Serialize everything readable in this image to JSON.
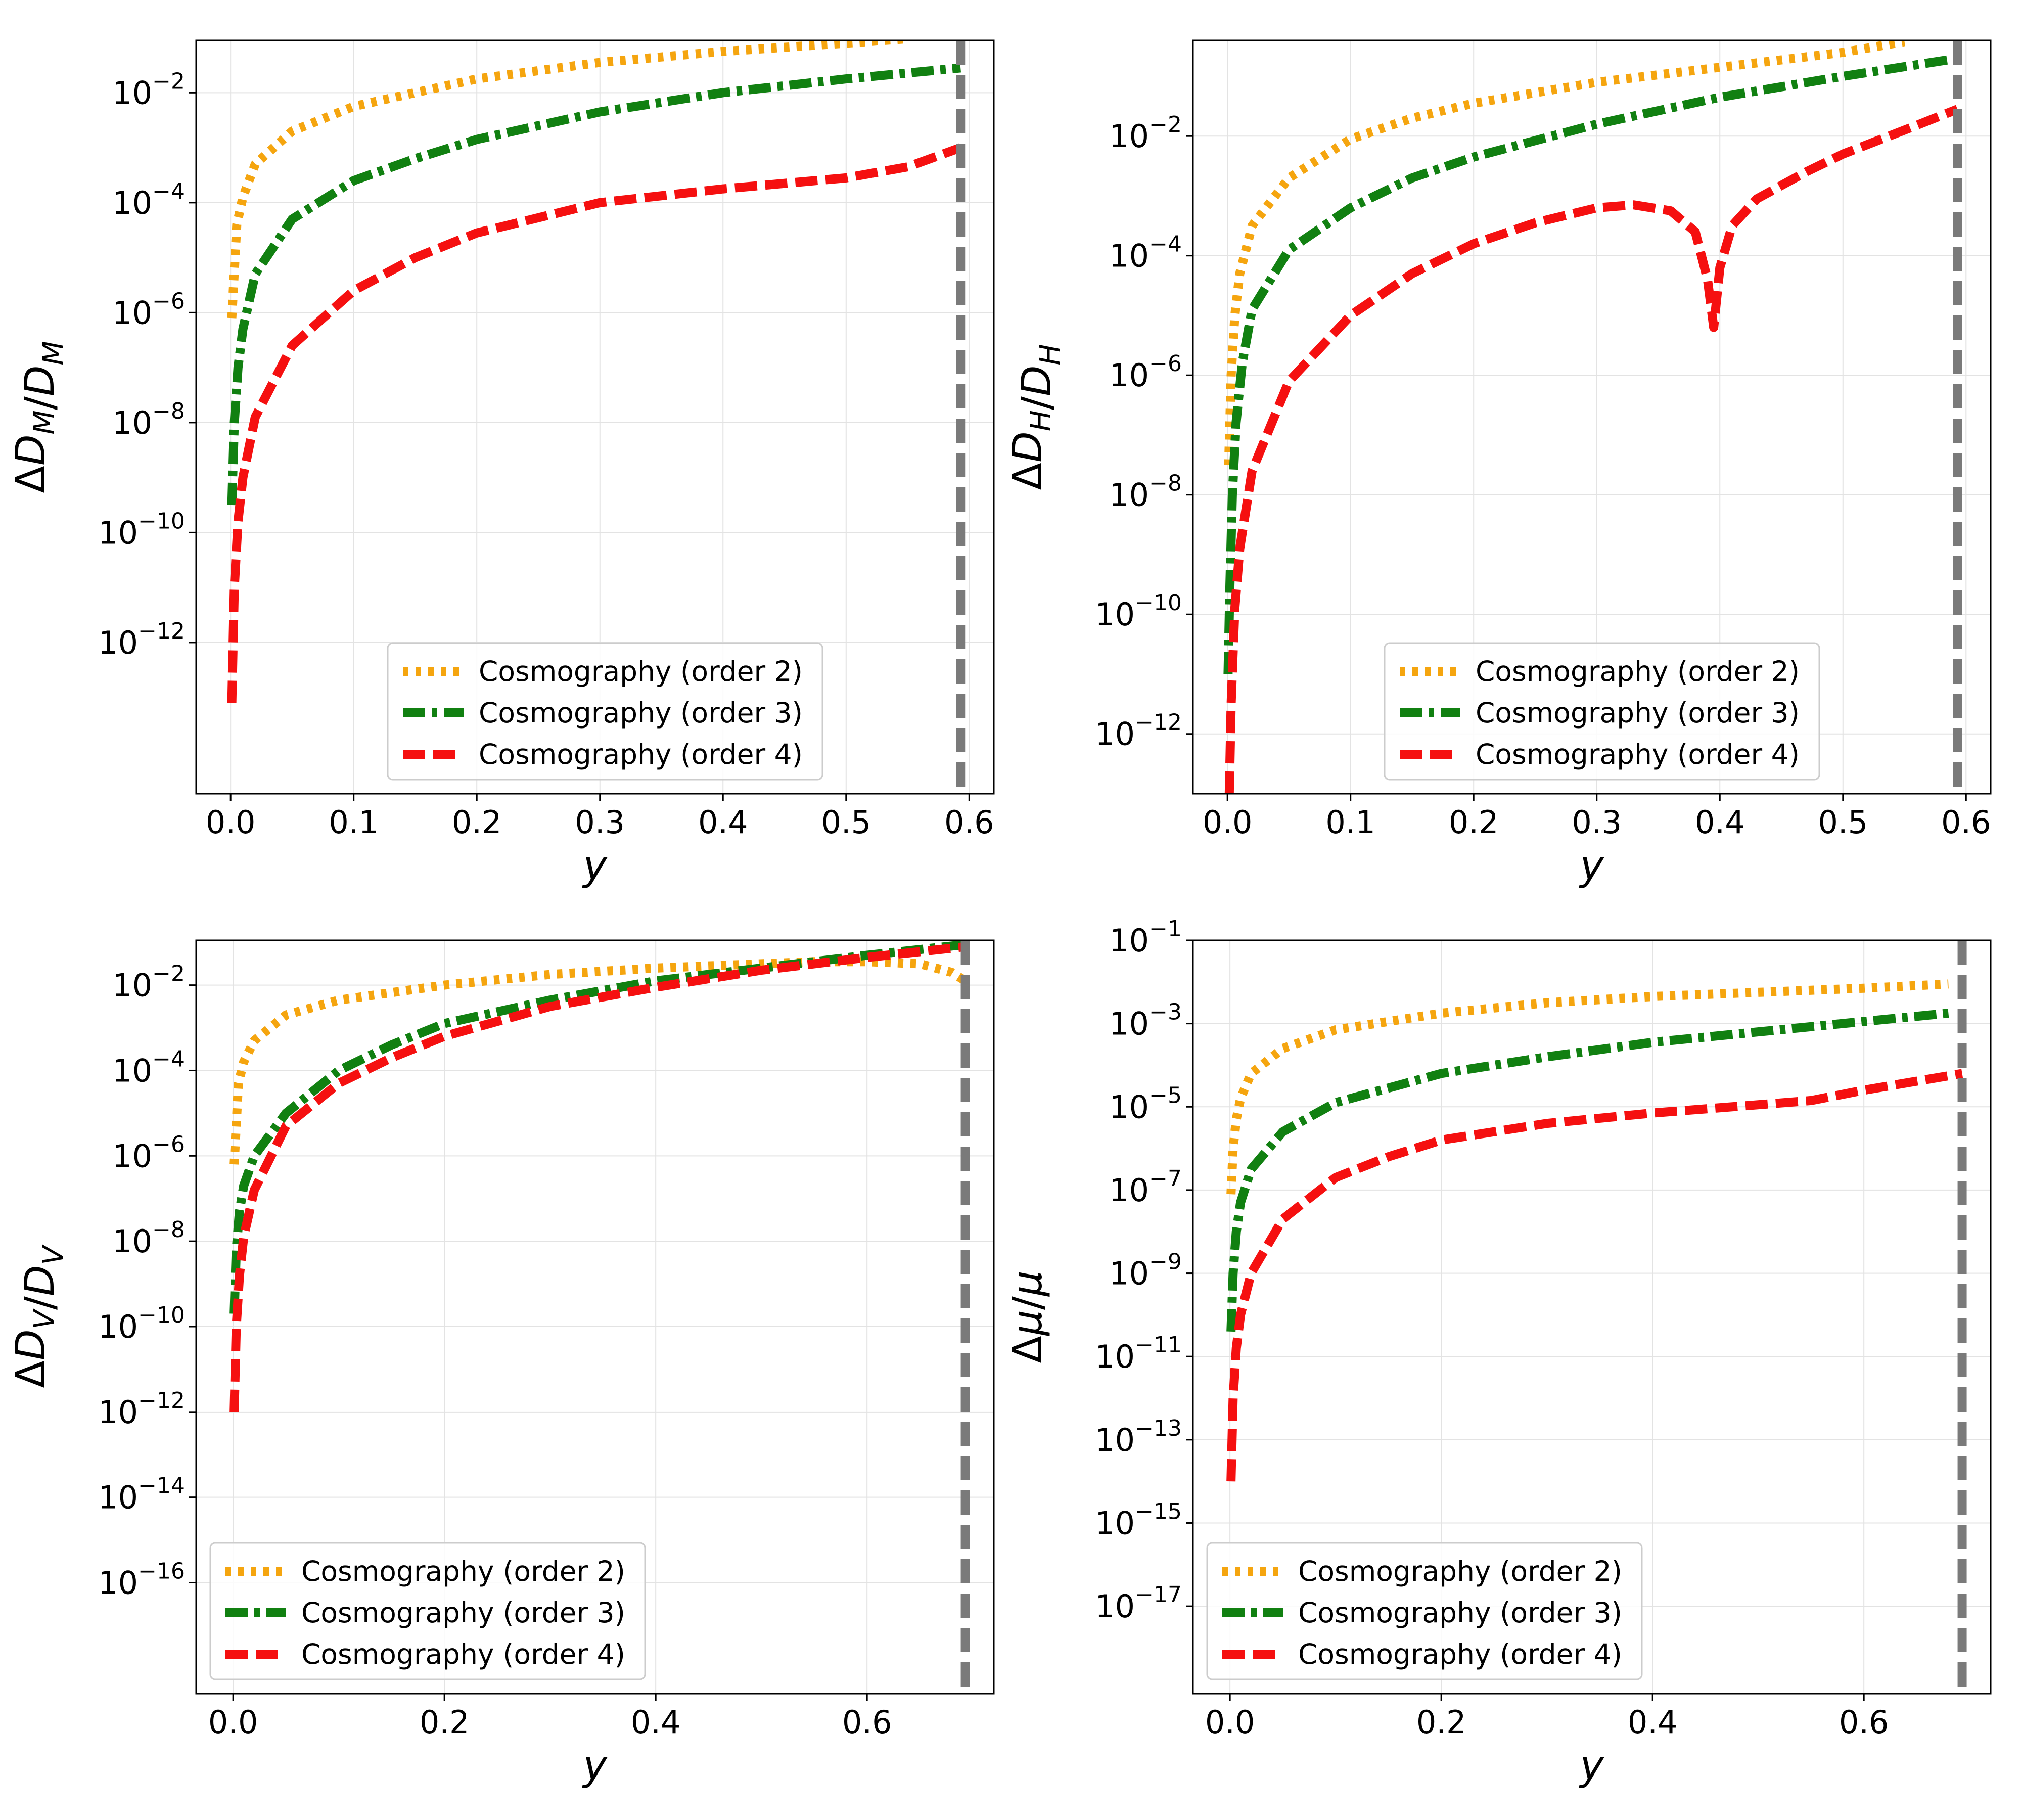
{
  "figure": {
    "legend_labels": [
      "Cosmography (order 2)",
      "Cosmography (order 3)",
      "Cosmography (order 4)"
    ],
    "colors": {
      "order2": "#f5a50f",
      "order3": "#118011",
      "order4": "#f51010",
      "cutoff": "#7a7a7a"
    }
  },
  "chart_data": [
    {
      "id": "dm",
      "type": "line",
      "yscale": "log",
      "xlabel": "y",
      "ylabel": "ΔD_M/D_M",
      "xlim": [
        -0.028,
        0.62
      ],
      "ylim_log10": [
        -14.75,
        -1.05
      ],
      "xticks": [
        0.0,
        0.1,
        0.2,
        0.3,
        0.4,
        0.5,
        0.6
      ],
      "xtick_labels": [
        "0.0",
        "0.1",
        "0.2",
        "0.3",
        "0.4",
        "0.5",
        "0.6"
      ],
      "yticks_log10": [
        -12,
        -10,
        -8,
        -6,
        -4,
        -2
      ],
      "cutoff_x": 0.593,
      "legend_loc": "lower center",
      "series": [
        {
          "name": "Cosmography (order 2)",
          "style": "dotted",
          "log10_points": [
            [
              0.001,
              -6.1
            ],
            [
              0.005,
              -4.4
            ],
            [
              0.01,
              -3.9
            ],
            [
              0.02,
              -3.3
            ],
            [
              0.05,
              -2.7
            ],
            [
              0.1,
              -2.25
            ],
            [
              0.15,
              -2.0
            ],
            [
              0.2,
              -1.75
            ],
            [
              0.3,
              -1.45
            ],
            [
              0.4,
              -1.25
            ],
            [
              0.5,
              -1.1
            ],
            [
              0.55,
              -1.02
            ]
          ]
        },
        {
          "name": "Cosmography (order 3)",
          "style": "dashdot",
          "log10_points": [
            [
              0.001,
              -9.5
            ],
            [
              0.003,
              -8.0
            ],
            [
              0.006,
              -7.0
            ],
            [
              0.01,
              -6.3
            ],
            [
              0.02,
              -5.3
            ],
            [
              0.05,
              -4.3
            ],
            [
              0.1,
              -3.6
            ],
            [
              0.15,
              -3.2
            ],
            [
              0.2,
              -2.85
            ],
            [
              0.3,
              -2.35
            ],
            [
              0.4,
              -2.0
            ],
            [
              0.5,
              -1.75
            ],
            [
              0.593,
              -1.55
            ]
          ]
        },
        {
          "name": "Cosmography (order 4)",
          "style": "dashed",
          "log10_points": [
            [
              0.001,
              -13.1
            ],
            [
              0.003,
              -11.0
            ],
            [
              0.006,
              -9.8
            ],
            [
              0.01,
              -9.0
            ],
            [
              0.02,
              -7.9
            ],
            [
              0.05,
              -6.6
            ],
            [
              0.1,
              -5.6
            ],
            [
              0.15,
              -5.0
            ],
            [
              0.2,
              -4.55
            ],
            [
              0.3,
              -4.0
            ],
            [
              0.4,
              -3.75
            ],
            [
              0.5,
              -3.55
            ],
            [
              0.55,
              -3.35
            ],
            [
              0.593,
              -3.0
            ]
          ]
        }
      ]
    },
    {
      "id": "dh",
      "type": "line",
      "yscale": "log",
      "xlabel": "y",
      "ylabel": "ΔD_H/D_H",
      "xlim": [
        -0.028,
        0.62
      ],
      "ylim_log10": [
        -13.0,
        -0.4
      ],
      "xticks": [
        0.0,
        0.1,
        0.2,
        0.3,
        0.4,
        0.5,
        0.6
      ],
      "xtick_labels": [
        "0.0",
        "0.1",
        "0.2",
        "0.3",
        "0.4",
        "0.5",
        "0.6"
      ],
      "yticks_log10": [
        -12,
        -10,
        -8,
        -6,
        -4,
        -2
      ],
      "cutoff_x": 0.593,
      "legend_loc": "lower center",
      "series": [
        {
          "name": "Cosmography (order 2)",
          "style": "dotted",
          "log10_points": [
            [
              0.001,
              -7.5
            ],
            [
              0.003,
              -6.0
            ],
            [
              0.006,
              -5.0
            ],
            [
              0.01,
              -4.3
            ],
            [
              0.02,
              -3.5
            ],
            [
              0.05,
              -2.7
            ],
            [
              0.1,
              -2.05
            ],
            [
              0.15,
              -1.7
            ],
            [
              0.2,
              -1.45
            ],
            [
              0.3,
              -1.1
            ],
            [
              0.4,
              -0.85
            ],
            [
              0.5,
              -0.6
            ],
            [
              0.55,
              -0.42
            ]
          ]
        },
        {
          "name": "Cosmography (order 3)",
          "style": "dashdot",
          "log10_points": [
            [
              0.0005,
              -11.0
            ],
            [
              0.002,
              -9.5
            ],
            [
              0.004,
              -8.0
            ],
            [
              0.007,
              -6.8
            ],
            [
              0.012,
              -5.8
            ],
            [
              0.02,
              -4.9
            ],
            [
              0.05,
              -3.9
            ],
            [
              0.1,
              -3.2
            ],
            [
              0.15,
              -2.7
            ],
            [
              0.2,
              -2.35
            ],
            [
              0.3,
              -1.8
            ],
            [
              0.4,
              -1.35
            ],
            [
              0.5,
              -1.0
            ],
            [
              0.593,
              -0.7
            ]
          ]
        },
        {
          "name": "Cosmography (order 4)",
          "style": "dashed",
          "log10_points": [
            [
              0.0015,
              -13.0
            ],
            [
              0.003,
              -11.5
            ],
            [
              0.006,
              -9.9
            ],
            [
              0.01,
              -8.9
            ],
            [
              0.02,
              -7.6
            ],
            [
              0.05,
              -6.1
            ],
            [
              0.1,
              -5.0
            ],
            [
              0.15,
              -4.3
            ],
            [
              0.2,
              -3.8
            ],
            [
              0.25,
              -3.45
            ],
            [
              0.3,
              -3.2
            ],
            [
              0.33,
              -3.15
            ],
            [
              0.36,
              -3.25
            ],
            [
              0.38,
              -3.6
            ],
            [
              0.39,
              -4.4
            ],
            [
              0.395,
              -5.2
            ],
            [
              0.4,
              -4.2
            ],
            [
              0.41,
              -3.5
            ],
            [
              0.43,
              -3.05
            ],
            [
              0.47,
              -2.6
            ],
            [
              0.5,
              -2.3
            ],
            [
              0.55,
              -1.9
            ],
            [
              0.593,
              -1.55
            ]
          ]
        }
      ]
    },
    {
      "id": "dv",
      "type": "line",
      "yscale": "log",
      "xlabel": "y",
      "ylabel": "ΔD_V/D_V",
      "xlim": [
        -0.035,
        0.72
      ],
      "ylim_log10": [
        -18.6,
        -0.95
      ],
      "xticks": [
        0.0,
        0.2,
        0.4,
        0.6
      ],
      "xtick_labels": [
        "0.0",
        "0.2",
        "0.4",
        "0.6"
      ],
      "yticks_log10": [
        -16,
        -14,
        -12,
        -10,
        -8,
        -6,
        -4,
        -2
      ],
      "cutoff_x": 0.693,
      "legend_loc": "lower left",
      "series": [
        {
          "name": "Cosmography (order 2)",
          "style": "dotted",
          "log10_points": [
            [
              0.001,
              -6.2
            ],
            [
              0.005,
              -4.3
            ],
            [
              0.01,
              -3.8
            ],
            [
              0.02,
              -3.3
            ],
            [
              0.05,
              -2.7
            ],
            [
              0.1,
              -2.35
            ],
            [
              0.2,
              -2.0
            ],
            [
              0.3,
              -1.75
            ],
            [
              0.4,
              -1.6
            ],
            [
              0.5,
              -1.5
            ],
            [
              0.55,
              -1.45
            ],
            [
              0.6,
              -1.45
            ],
            [
              0.65,
              -1.5
            ],
            [
              0.68,
              -1.7
            ],
            [
              0.693,
              -1.9
            ]
          ]
        },
        {
          "name": "Cosmography (order 3)",
          "style": "dashdot",
          "log10_points": [
            [
              0.001,
              -9.7
            ],
            [
              0.003,
              -8.2
            ],
            [
              0.006,
              -7.3
            ],
            [
              0.01,
              -6.7
            ],
            [
              0.02,
              -6.0
            ],
            [
              0.05,
              -5.0
            ],
            [
              0.1,
              -4.0
            ],
            [
              0.15,
              -3.4
            ],
            [
              0.2,
              -2.9
            ],
            [
              0.3,
              -2.35
            ],
            [
              0.4,
              -1.9
            ],
            [
              0.5,
              -1.6
            ],
            [
              0.6,
              -1.3
            ],
            [
              0.693,
              -1.05
            ]
          ]
        },
        {
          "name": "Cosmography (order 4)",
          "style": "dashed",
          "log10_points": [
            [
              0.001,
              -12.0
            ],
            [
              0.003,
              -10.0
            ],
            [
              0.006,
              -8.8
            ],
            [
              0.01,
              -7.9
            ],
            [
              0.02,
              -6.8
            ],
            [
              0.05,
              -5.3
            ],
            [
              0.1,
              -4.3
            ],
            [
              0.15,
              -3.7
            ],
            [
              0.2,
              -3.2
            ],
            [
              0.3,
              -2.5
            ],
            [
              0.4,
              -2.05
            ],
            [
              0.5,
              -1.65
            ],
            [
              0.6,
              -1.35
            ],
            [
              0.693,
              -1.1
            ]
          ]
        }
      ]
    },
    {
      "id": "mu",
      "type": "line",
      "yscale": "log",
      "xlabel": "y",
      "ylabel": "Δμ/μ",
      "xlim": [
        -0.035,
        0.72
      ],
      "ylim_log10": [
        -19.1,
        -1.0
      ],
      "xticks": [
        0.0,
        0.2,
        0.4,
        0.6
      ],
      "xtick_labels": [
        "0.0",
        "0.2",
        "0.4",
        "0.6"
      ],
      "yticks_log10": [
        -17,
        -15,
        -13,
        -11,
        -9,
        -7,
        -5,
        -3,
        -1
      ],
      "cutoff_x": 0.693,
      "legend_loc": "lower left",
      "series": [
        {
          "name": "Cosmography (order 2)",
          "style": "dotted",
          "log10_points": [
            [
              0.001,
              -7.1
            ],
            [
              0.003,
              -6.0
            ],
            [
              0.006,
              -5.3
            ],
            [
              0.01,
              -4.8
            ],
            [
              0.02,
              -4.2
            ],
            [
              0.05,
              -3.6
            ],
            [
              0.1,
              -3.15
            ],
            [
              0.2,
              -2.75
            ],
            [
              0.3,
              -2.5
            ],
            [
              0.4,
              -2.35
            ],
            [
              0.5,
              -2.25
            ],
            [
              0.6,
              -2.15
            ],
            [
              0.68,
              -2.05
            ]
          ]
        },
        {
          "name": "Cosmography (order 3)",
          "style": "dashdot",
          "log10_points": [
            [
              0.001,
              -10.4
            ],
            [
              0.003,
              -9.0
            ],
            [
              0.006,
              -8.0
            ],
            [
              0.01,
              -7.3
            ],
            [
              0.02,
              -6.5
            ],
            [
              0.05,
              -5.6
            ],
            [
              0.1,
              -4.9
            ],
            [
              0.2,
              -4.2
            ],
            [
              0.3,
              -3.8
            ],
            [
              0.4,
              -3.45
            ],
            [
              0.5,
              -3.2
            ],
            [
              0.6,
              -2.95
            ],
            [
              0.68,
              -2.75
            ]
          ]
        },
        {
          "name": "Cosmography (order 4)",
          "style": "dashed",
          "log10_points": [
            [
              0.001,
              -14.0
            ],
            [
              0.003,
              -12.0
            ],
            [
              0.006,
              -10.8
            ],
            [
              0.01,
              -10.0
            ],
            [
              0.02,
              -9.0
            ],
            [
              0.05,
              -7.7
            ],
            [
              0.1,
              -6.7
            ],
            [
              0.15,
              -6.2
            ],
            [
              0.2,
              -5.8
            ],
            [
              0.3,
              -5.4
            ],
            [
              0.4,
              -5.15
            ],
            [
              0.5,
              -4.95
            ],
            [
              0.55,
              -4.85
            ],
            [
              0.6,
              -4.6
            ],
            [
              0.693,
              -4.2
            ]
          ]
        }
      ]
    }
  ]
}
